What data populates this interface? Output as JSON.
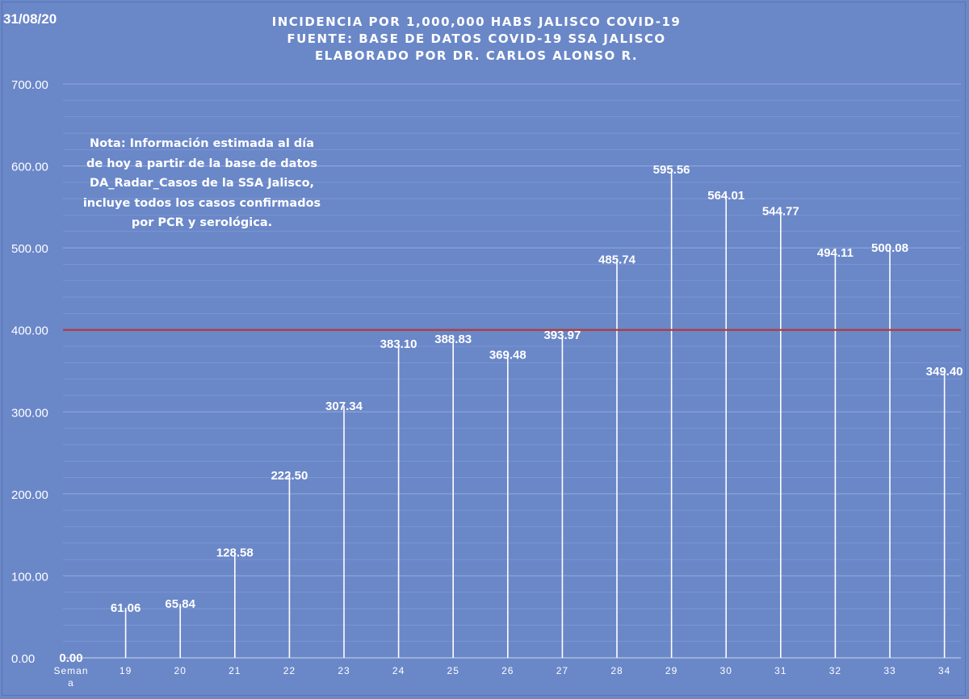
{
  "header": {
    "date": "31/08/20",
    "title_lines": [
      "INCIDENCIA POR 1,000,000 HABS JALISCO COVID-19",
      "FUENTE: BASE DE DATOS COVID-19 SSA JALISCO",
      "ELABORADO POR DR. CARLOS ALONSO R."
    ]
  },
  "note": {
    "lines": [
      "Nota: Información estimada al día",
      "de hoy a partir de la base de datos",
      "DA_Radar_Casos de la SSA Jalisco,",
      "incluye todos los casos confirmados",
      "por PCR y serológica."
    ]
  },
  "chart_data": {
    "type": "bar",
    "categories": [
      "Semana",
      "19",
      "20",
      "21",
      "22",
      "23",
      "24",
      "25",
      "26",
      "27",
      "28",
      "29",
      "30",
      "31",
      "32",
      "33",
      "34"
    ],
    "category_label_lines": [
      [
        "Seman",
        "a"
      ],
      [
        "19"
      ],
      [
        "20"
      ],
      [
        "21"
      ],
      [
        "22"
      ],
      [
        "23"
      ],
      [
        "24"
      ],
      [
        "25"
      ],
      [
        "26"
      ],
      [
        "27"
      ],
      [
        "28"
      ],
      [
        "29"
      ],
      [
        "30"
      ],
      [
        "31"
      ],
      [
        "32"
      ],
      [
        "33"
      ],
      [
        "34"
      ]
    ],
    "values": [
      0.0,
      61.06,
      65.84,
      128.58,
      222.5,
      307.34,
      383.1,
      388.83,
      369.48,
      393.97,
      485.74,
      595.56,
      564.01,
      544.77,
      494.11,
      500.08,
      349.4
    ],
    "value_labels": [
      "0.00",
      "61.06",
      "65.84",
      "128.58",
      "222.50",
      "307.34",
      "383.10",
      "388.83",
      "369.48",
      "393.97",
      "485.74",
      "595.56",
      "564.01",
      "544.77",
      "494.11",
      "500.08",
      "349.40"
    ],
    "ylim": [
      0,
      700
    ],
    "yticks": [
      "0.00",
      "100.00",
      "200.00",
      "300.00",
      "400.00",
      "500.00",
      "600.00",
      "700.00"
    ],
    "ytick_values": [
      0,
      100,
      200,
      300,
      400,
      500,
      600,
      700
    ],
    "reference_line": {
      "value": 400,
      "color": "#b03a3a"
    },
    "grid": true,
    "colors": {
      "background": "#6a87c8",
      "bar": "#ffffff",
      "grid": "#8aa2d6",
      "text": "#ffffff"
    }
  }
}
